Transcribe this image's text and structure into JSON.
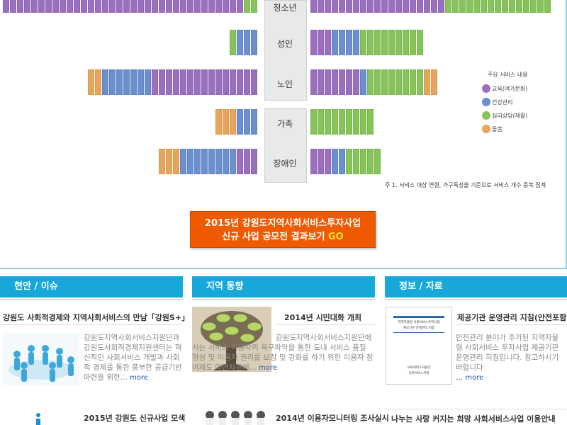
{
  "chart": {
    "rows": [
      {
        "label": "청소년",
        "left": [
          0,
          0,
          0,
          0,
          0,
          0,
          0,
          0,
          0,
          0,
          0,
          0,
          0,
          0,
          0,
          0,
          0,
          0,
          0,
          0,
          0,
          0,
          0,
          0,
          0,
          0,
          0,
          0,
          0,
          0,
          0,
          0,
          0,
          0,
          2,
          2
        ],
        "right": [
          0,
          0,
          0,
          0,
          0,
          0,
          0,
          0,
          0,
          0,
          0,
          0,
          0,
          0,
          0,
          0,
          0,
          0,
          0,
          2,
          2,
          2,
          2,
          2,
          2,
          2,
          2,
          2,
          2,
          2,
          2,
          2,
          2,
          2
        ]
      },
      {
        "label": "성인",
        "left": [
          2,
          1,
          1,
          1
        ],
        "right": [
          0,
          0,
          0,
          1,
          1,
          1,
          1,
          2,
          2,
          2,
          2,
          2,
          2,
          2,
          2,
          2
        ]
      },
      {
        "label": "노인",
        "left": [
          3,
          3,
          1,
          1,
          1,
          1,
          1,
          1,
          1,
          0,
          0,
          0,
          0,
          0,
          0,
          0,
          0,
          0,
          0,
          0,
          0,
          0,
          0,
          0
        ],
        "right": [
          0,
          0,
          0,
          0,
          0,
          0,
          0,
          1,
          2,
          2,
          2,
          2,
          2,
          2,
          2,
          2,
          3,
          3
        ]
      },
      {
        "label": "가족",
        "left": [
          3,
          3,
          3,
          1,
          1,
          1
        ],
        "right": [
          2,
          2,
          2,
          2,
          2,
          2,
          2,
          2,
          2
        ]
      },
      {
        "label": "장애인",
        "left": [
          3,
          3,
          3,
          1,
          1,
          1,
          1,
          1,
          1,
          1,
          1,
          0,
          0,
          0
        ],
        "right": [
          0,
          0,
          0,
          1,
          1,
          2,
          2,
          2,
          2,
          2
        ]
      }
    ],
    "legend_title": "주요 서비스 내용",
    "legend": [
      {
        "label": "교육(여가문화)",
        "color": "#9b6fbf"
      },
      {
        "label": "건강관리",
        "color": "#6b8fcf"
      },
      {
        "label": "심리상담(재활)",
        "color": "#86c45a"
      },
      {
        "label": "돌봄",
        "color": "#e8a55a"
      }
    ],
    "note": "주 1. 서비스 대상 연령, 가구특성을 기준으로 서비스 개수 중복 집계"
  },
  "cta": {
    "line1": "2015년 강원도지역사회서비스투자사업",
    "line2": "신규 사업 공모전 결과보기",
    "go": "GO"
  },
  "columns": {
    "issue": {
      "head": "현안 / 이슈",
      "item1_title": "강원도 사회적경제와 지역사회서비스의 만남「강원S+」",
      "item1_body": "강원도지역사회서비스지원단과 강원도사회적경제지원센터는 혁신적인 사회서비스 개발과 사회적 경제를 통한 풍부한 공급기반 마련을 위한...",
      "item2_title": "2015년 강원도 신규사업 모색",
      "more": "more"
    },
    "region": {
      "head": "지역 동향",
      "item1_title": "2014년 시민대화 개최",
      "item1_body": "강원도지역사회서비스지원단에서는 서비스 이용자의 욕구파악을 통한 도내 서비스 품질 향상 및 이용자 권리를 보장 및 강화를 하기 위한 이용자 참여제도 마련차원에...",
      "item2_title": "2014년 이용자모니터링 조사실시",
      "more": "more"
    },
    "info": {
      "head": "정보 / 자료",
      "item1_title": "제공기관 운영관리 지침(안전포함)",
      "item1_body": "안전관리 분야가 추가된 지역자율형 사회서비스 투자사업 제공기관 운영관리 지침입니다. 참고하시기 바랍니다",
      "doc_line1": "지역자율형 사회서비스투자사업",
      "doc_line2": "제공기관 운영관리 지침",
      "doc_org1": "사회서비스지원단",
      "doc_org2": "사회서비스지원",
      "item2_title": "나누는 사랑 커지는 희망 사회서비스사업 이용안내",
      "more": "more"
    }
  }
}
